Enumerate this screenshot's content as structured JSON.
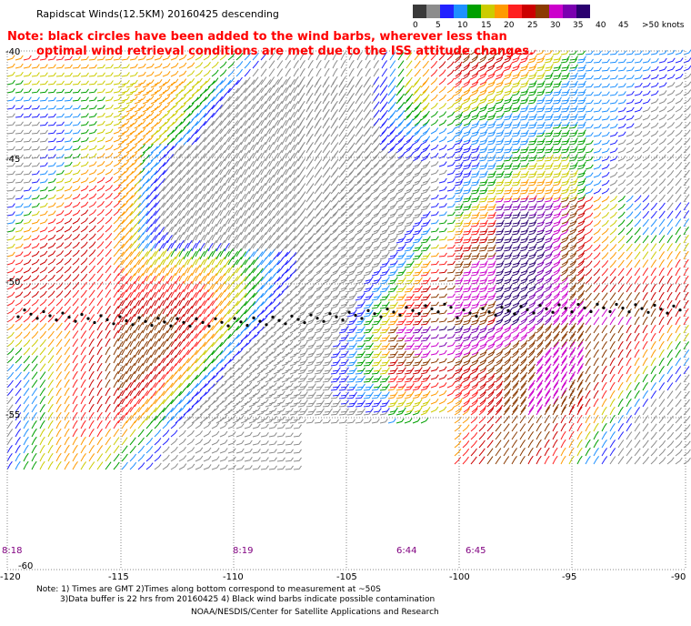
{
  "title": "Rapidscat Winds(12.5KM) 20160425 descending",
  "note_line1": "Note: black circles have been added to the wind barbs, wherever less than",
  "note_line2": "optimal wind retrieval conditions are met due to the ISS attitude changes.",
  "legend": {
    "labels": [
      "0",
      "5",
      "10",
      "15",
      "20",
      "25",
      "30",
      "35",
      "40",
      "45",
      ">50 knots"
    ],
    "colors": [
      "#3a3a3a",
      "#8c8c8c",
      "#2222ff",
      "#1e90ff",
      "#00a000",
      "#cccc00",
      "#ff9a00",
      "#ff2020",
      "#cc0000",
      "#8b3a00",
      "#cc00cc",
      "#7a00b0",
      "#2a0070"
    ]
  },
  "lon_ticks": [
    "-120",
    "-115",
    "-110",
    "-105",
    "-100",
    "-95",
    "-90"
  ],
  "lat_ticks": [
    "-40",
    "-45",
    "-50",
    "-55",
    "-60"
  ],
  "pass_times": [
    "8:18",
    "8:19",
    "6:44",
    "6:45"
  ],
  "footnote_line1": "Note: 1) Times are GMT 2)Times along bottom correspond to measurement at ~50S",
  "footnote_line2": "3)Data buffer is 22 hrs from 20160425 4) Black wind barbs indicate possible contamination",
  "credit": "NOAA/NESDIS/Center for Satellite Applications and Research"
}
